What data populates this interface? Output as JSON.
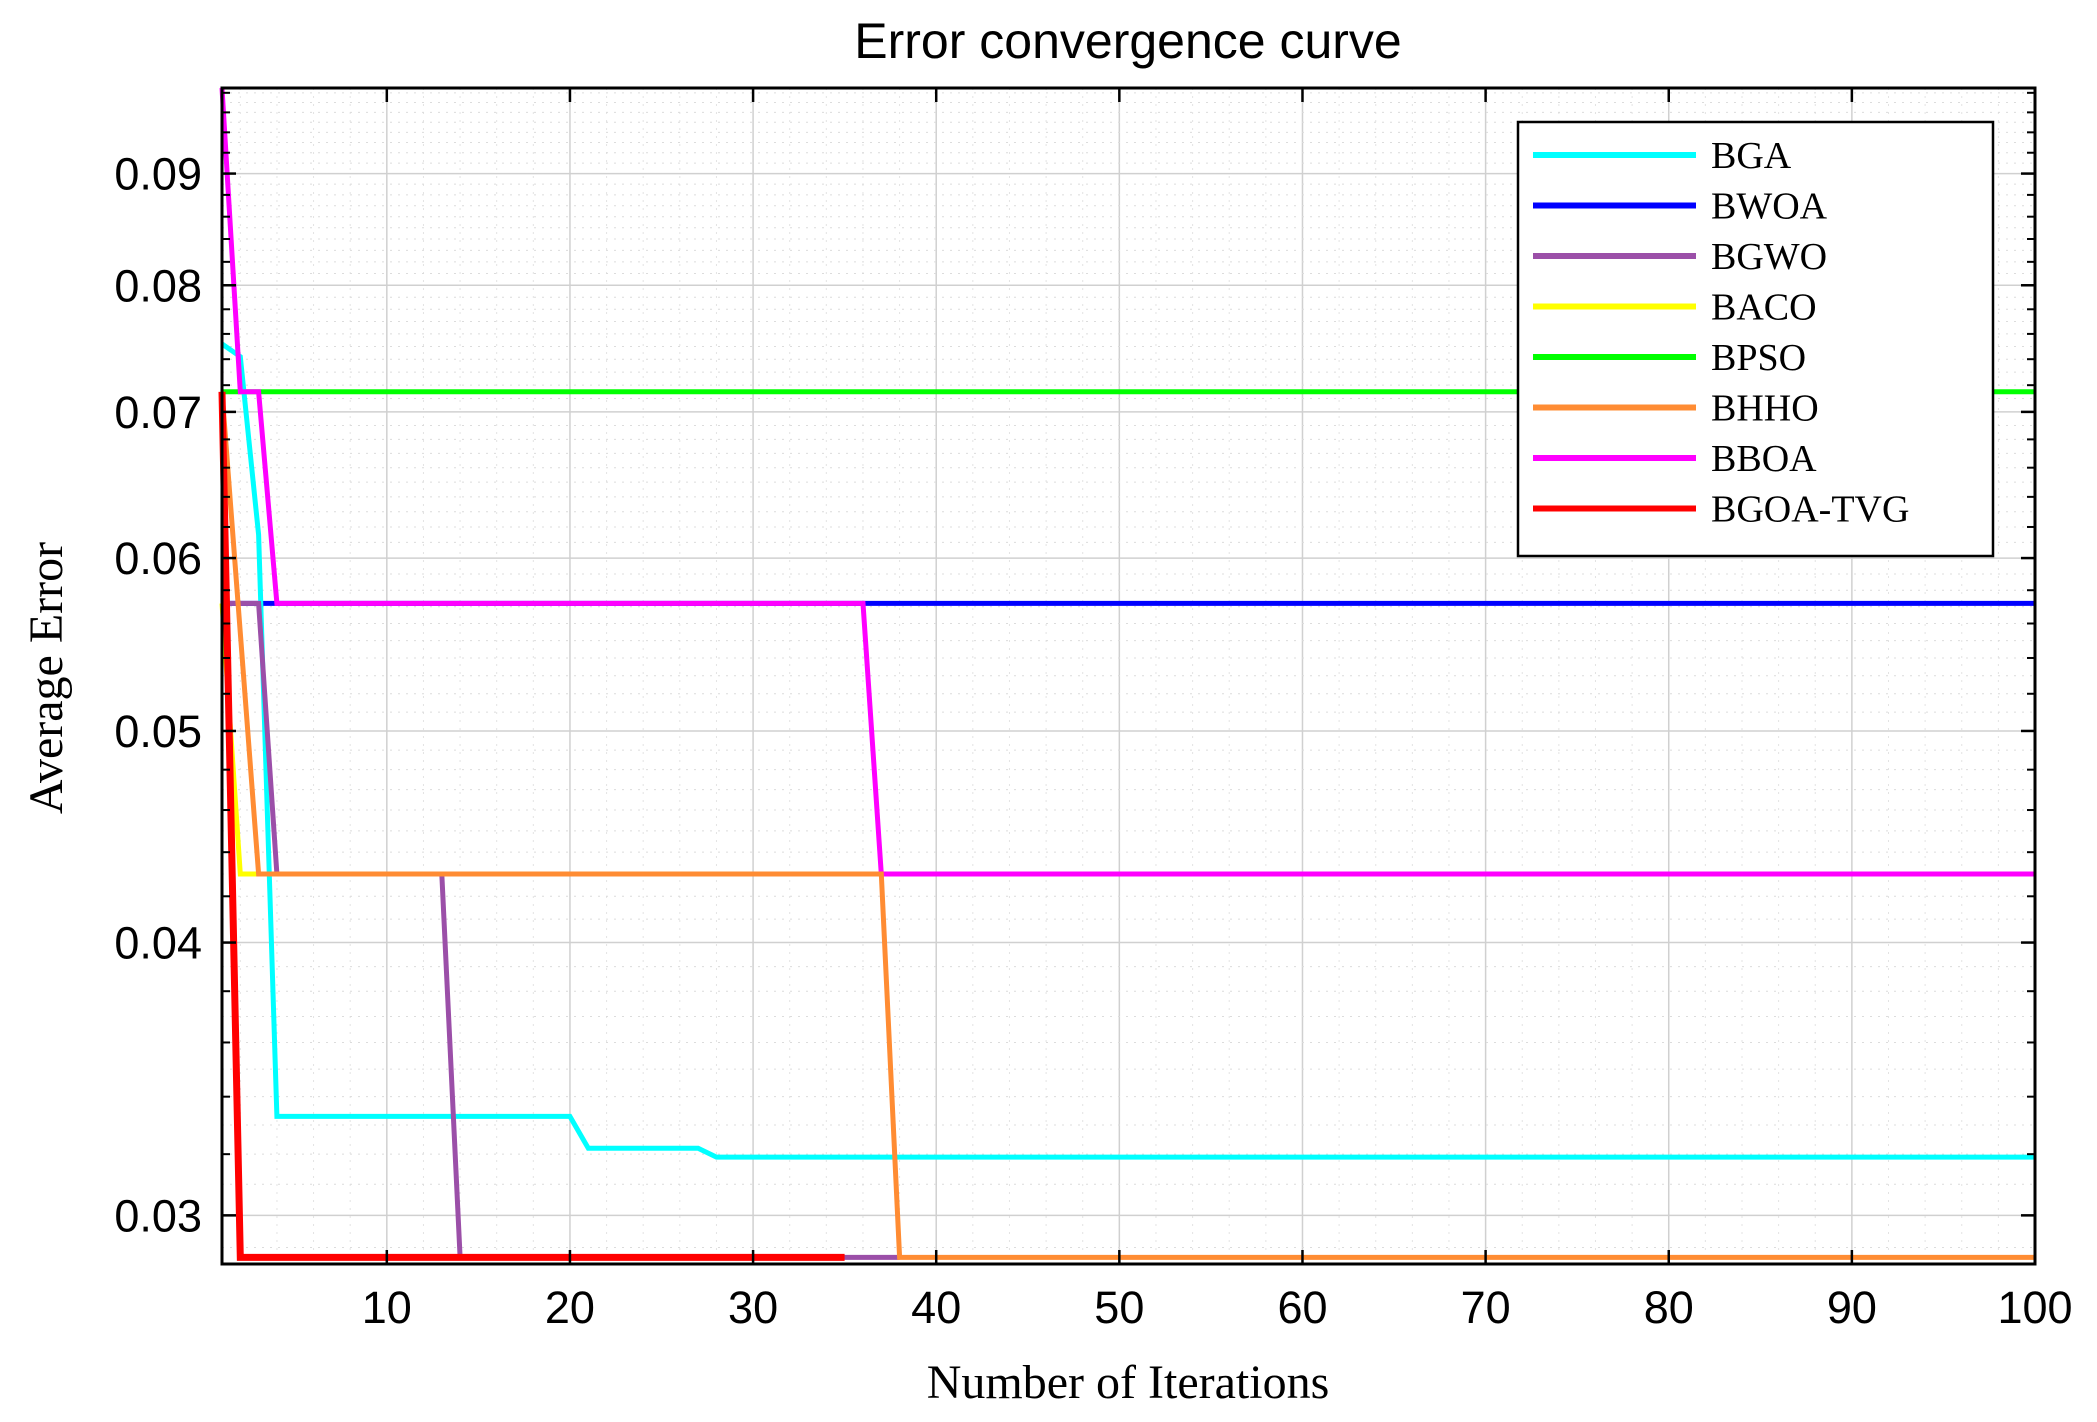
{
  "chart_data": {
    "type": "line",
    "title": "Error convergence curve",
    "xlabel": "Number of Iterations",
    "ylabel": "Average Error",
    "xlim": [
      1,
      100
    ],
    "ylim": [
      0.0285,
      0.0985
    ],
    "yscale": "log",
    "grid": true,
    "legend_position": "top-right",
    "xticks": [
      10,
      20,
      30,
      40,
      50,
      60,
      70,
      80,
      90,
      100
    ],
    "xtick_labels": [
      "10",
      "20",
      "30",
      "40",
      "50",
      "60",
      "70",
      "80",
      "90",
      "100"
    ],
    "yticks": [
      0.03,
      0.04,
      0.05,
      0.06,
      0.07,
      0.08,
      0.09
    ],
    "ytick_labels": [
      "0.03",
      "0.04",
      "0.05",
      "0.06",
      "0.07",
      "0.08",
      "0.09"
    ],
    "series": [
      {
        "name": "BGA",
        "color": "#00ffff",
        "points": [
          [
            1,
            0.0752
          ],
          [
            2,
            0.0742
          ],
          [
            3,
            0.0615
          ],
          [
            4,
            0.0333
          ],
          [
            20,
            0.0333
          ],
          [
            21,
            0.0322
          ],
          [
            27,
            0.0322
          ],
          [
            28,
            0.0319
          ],
          [
            100,
            0.0319
          ]
        ]
      },
      {
        "name": "BWOA",
        "color": "#0000ff",
        "points": [
          [
            1,
            0.0572
          ],
          [
            100,
            0.0572
          ]
        ]
      },
      {
        "name": "BGWO",
        "color": "#9b4fa8",
        "points": [
          [
            1,
            0.0572
          ],
          [
            3,
            0.0572
          ],
          [
            4,
            0.043
          ],
          [
            13,
            0.043
          ],
          [
            14,
            0.0287
          ],
          [
            38,
            0.0287
          ]
        ]
      },
      {
        "name": "BACO",
        "color": "#ffff00",
        "points": [
          [
            1,
            0.0572
          ],
          [
            2,
            0.043
          ],
          [
            3,
            0.043
          ]
        ]
      },
      {
        "name": "BPSO",
        "color": "#00ff00",
        "points": [
          [
            1,
            0.0715
          ],
          [
            100,
            0.0715
          ]
        ]
      },
      {
        "name": "BHHO",
        "color": "#ff8c33",
        "points": [
          [
            1,
            0.0715
          ],
          [
            3,
            0.043
          ],
          [
            37,
            0.043
          ],
          [
            38,
            0.0287
          ],
          [
            100,
            0.0287
          ]
        ]
      },
      {
        "name": "BBOA",
        "color": "#ff00ff",
        "points": [
          [
            1,
            0.0985
          ],
          [
            2,
            0.0715
          ],
          [
            3,
            0.0715
          ],
          [
            4,
            0.0572
          ],
          [
            36,
            0.0572
          ],
          [
            37,
            0.043
          ],
          [
            100,
            0.043
          ]
        ]
      },
      {
        "name": "BGOA-TVG",
        "color": "#ff0000",
        "points": [
          [
            1,
            0.0715
          ],
          [
            2,
            0.0287
          ],
          [
            35,
            0.0287
          ]
        ]
      }
    ]
  }
}
